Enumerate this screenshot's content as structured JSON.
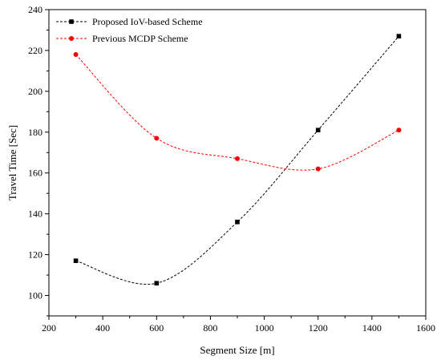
{
  "chart_data": {
    "type": "line",
    "title": "",
    "xlabel": "Segment Size [m]",
    "ylabel": "Travel Time [Sec]",
    "xlim": [
      200,
      1600
    ],
    "ylim": [
      90,
      240
    ],
    "xticks": [
      200,
      400,
      600,
      800,
      1000,
      1200,
      1400,
      1600
    ],
    "yticks": [
      100,
      120,
      140,
      160,
      180,
      200,
      220,
      240
    ],
    "grid": false,
    "legend_position": "top-left",
    "x": [
      300,
      600,
      900,
      1200,
      1500
    ],
    "series": [
      {
        "name": "Proposed IoV-based Scheme",
        "values": [
          117,
          106,
          136,
          181,
          227
        ],
        "color": "#000000",
        "marker": "square",
        "line_style": "dashed"
      },
      {
        "name": "Previous MCDP Scheme",
        "values": [
          218,
          177,
          167,
          162,
          181
        ],
        "color": "#ff0000",
        "marker": "circle",
        "line_style": "dashed"
      }
    ]
  }
}
